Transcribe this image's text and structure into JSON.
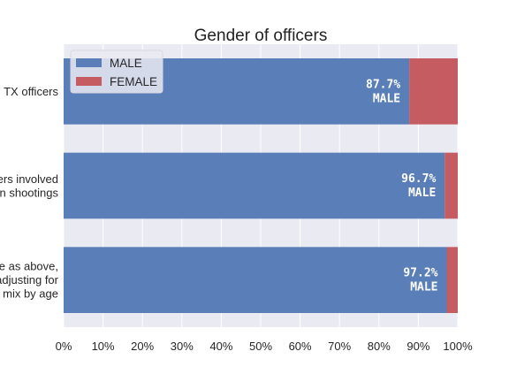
{
  "chart_data": {
    "type": "bar",
    "orientation": "horizontal",
    "stacked": true,
    "title": "Gender of officers",
    "categories": [
      [
        "TX officers"
      ],
      [
        "Officers involved",
        "in shootings"
      ],
      [
        "Same as above,",
        "after adjusting for",
        "mix by age"
      ]
    ],
    "series": [
      {
        "name": "MALE",
        "values": [
          87.7,
          96.7,
          97.2
        ],
        "color": "#5a7fb8"
      },
      {
        "name": "FEMALE",
        "values": [
          12.3,
          3.3,
          2.8
        ],
        "color": "#c55c62"
      }
    ],
    "bar_labels": [
      [
        "87.7%",
        "MALE"
      ],
      [
        "96.7%",
        "MALE"
      ],
      [
        "97.2%",
        "MALE"
      ]
    ],
    "xlim": [
      0,
      100
    ],
    "xticks": [
      "0%",
      "10%",
      "20%",
      "30%",
      "40%",
      "50%",
      "60%",
      "70%",
      "80%",
      "90%",
      "100%"
    ],
    "grid": true,
    "legend_position": "top-left",
    "plot_background": "#eaeaf2"
  }
}
